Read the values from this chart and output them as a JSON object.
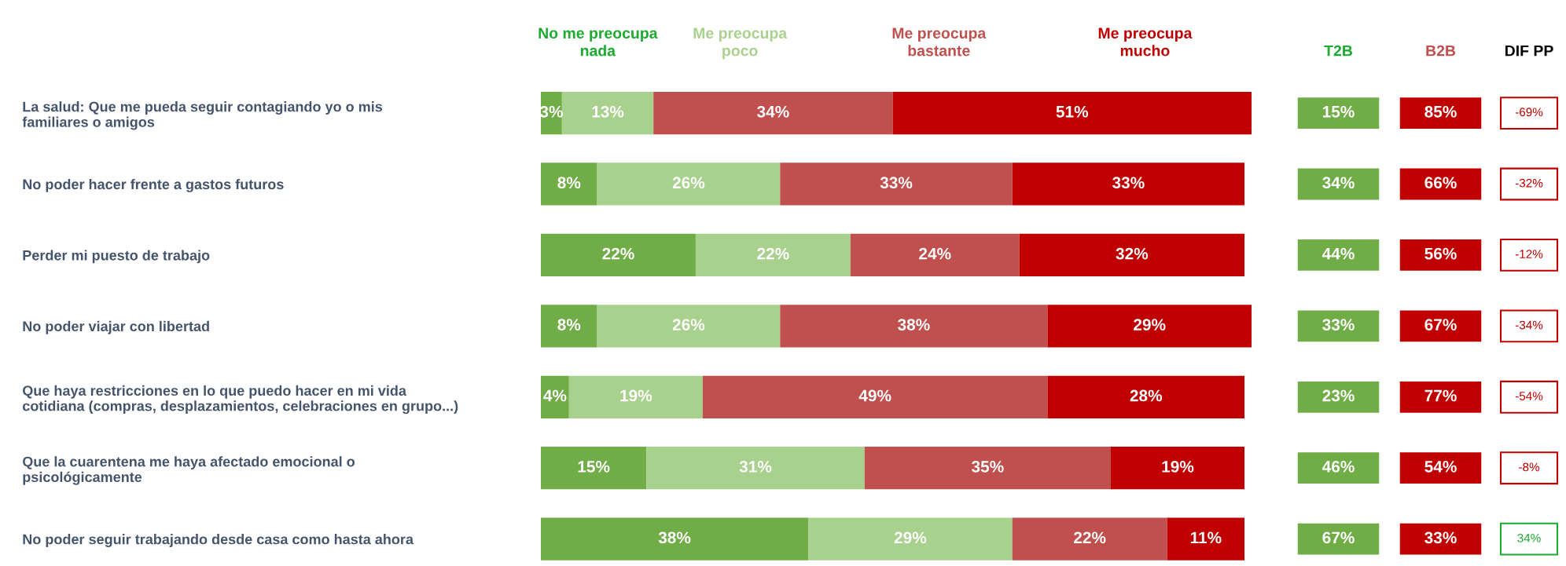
{
  "chart_data": [
    {
      "type": "bar",
      "orientation": "horizontal",
      "stacked": true,
      "legend": "top",
      "tick_labels": "y",
      "xlim": [
        0,
        101
      ],
      "categories": [
        "La salud: Que me pueda seguir contagiando yo o mis\nfamiliares o amigos",
        "No poder hacer frente a gastos futuros",
        "Perder mi puesto de trabajo",
        "No poder viajar con libertad",
        "Que haya restricciones en lo que puedo hacer en mi vida\ncotidiana (compras, desplazamientos, celebraciones en grupo...)",
        "Que la cuarentena me haya afectado emocional o\npsicológicamente",
        "No poder seguir trabajando desde casa como hasta ahora"
      ],
      "series": [
        {
          "name": "No me preocupa\nnada",
          "color": "#70ad47",
          "values": [
            3,
            8,
            22,
            8,
            4,
            15,
            38
          ],
          "value_labels": [
            "3%",
            "8%",
            "22%",
            "8%",
            "4%",
            "15%",
            "38%"
          ]
        },
        {
          "name": "Me preocupa\npoco",
          "color": "#a9d18e",
          "values": [
            13,
            26,
            22,
            26,
            19,
            31,
            29
          ],
          "value_labels": [
            "13%",
            "26%",
            "22%",
            "26%",
            "19%",
            "31%",
            "29%"
          ]
        },
        {
          "name": "Me preocupa\nbastante",
          "color": "#c0504d",
          "values": [
            34,
            33,
            24,
            38,
            49,
            35,
            22
          ],
          "value_labels": [
            "34%",
            "33%",
            "24%",
            "38%",
            "49%",
            "35%",
            "22%"
          ]
        },
        {
          "name": "Me preocupa\nmucho",
          "color": "#c00000",
          "values": [
            51,
            33,
            32,
            29,
            28,
            19,
            11
          ],
          "value_labels": [
            "51%",
            "33%",
            "32%",
            "29%",
            "28%",
            "19%",
            "11%"
          ]
        }
      ]
    },
    {
      "type": "other",
      "title": "T2B",
      "annotations": [
        "15%",
        "34%",
        "44%",
        "33%",
        "23%",
        "46%",
        "67%"
      ],
      "colors": [
        "#70ad47",
        "#70ad47",
        "#70ad47",
        "#70ad47",
        "#70ad47",
        "#70ad47",
        "#70ad47"
      ]
    },
    {
      "type": "other",
      "title": "B2B",
      "annotations": [
        "85%",
        "66%",
        "56%",
        "67%",
        "77%",
        "54%",
        "33%"
      ],
      "colors": [
        "#c00000",
        "#c00000",
        "#c00000",
        "#c00000",
        "#c00000",
        "#c00000",
        "#c00000"
      ]
    },
    {
      "type": "other",
      "title": "DIF PP",
      "annotations": [
        "-69%",
        "-32%",
        "-12%",
        "-34%",
        "-54%",
        "-8%",
        "34%"
      ],
      "colors": [
        "#c00000",
        "#c00000",
        "#c00000",
        "#c00000",
        "#c00000",
        "#c00000",
        "#1aab2f"
      ]
    }
  ]
}
